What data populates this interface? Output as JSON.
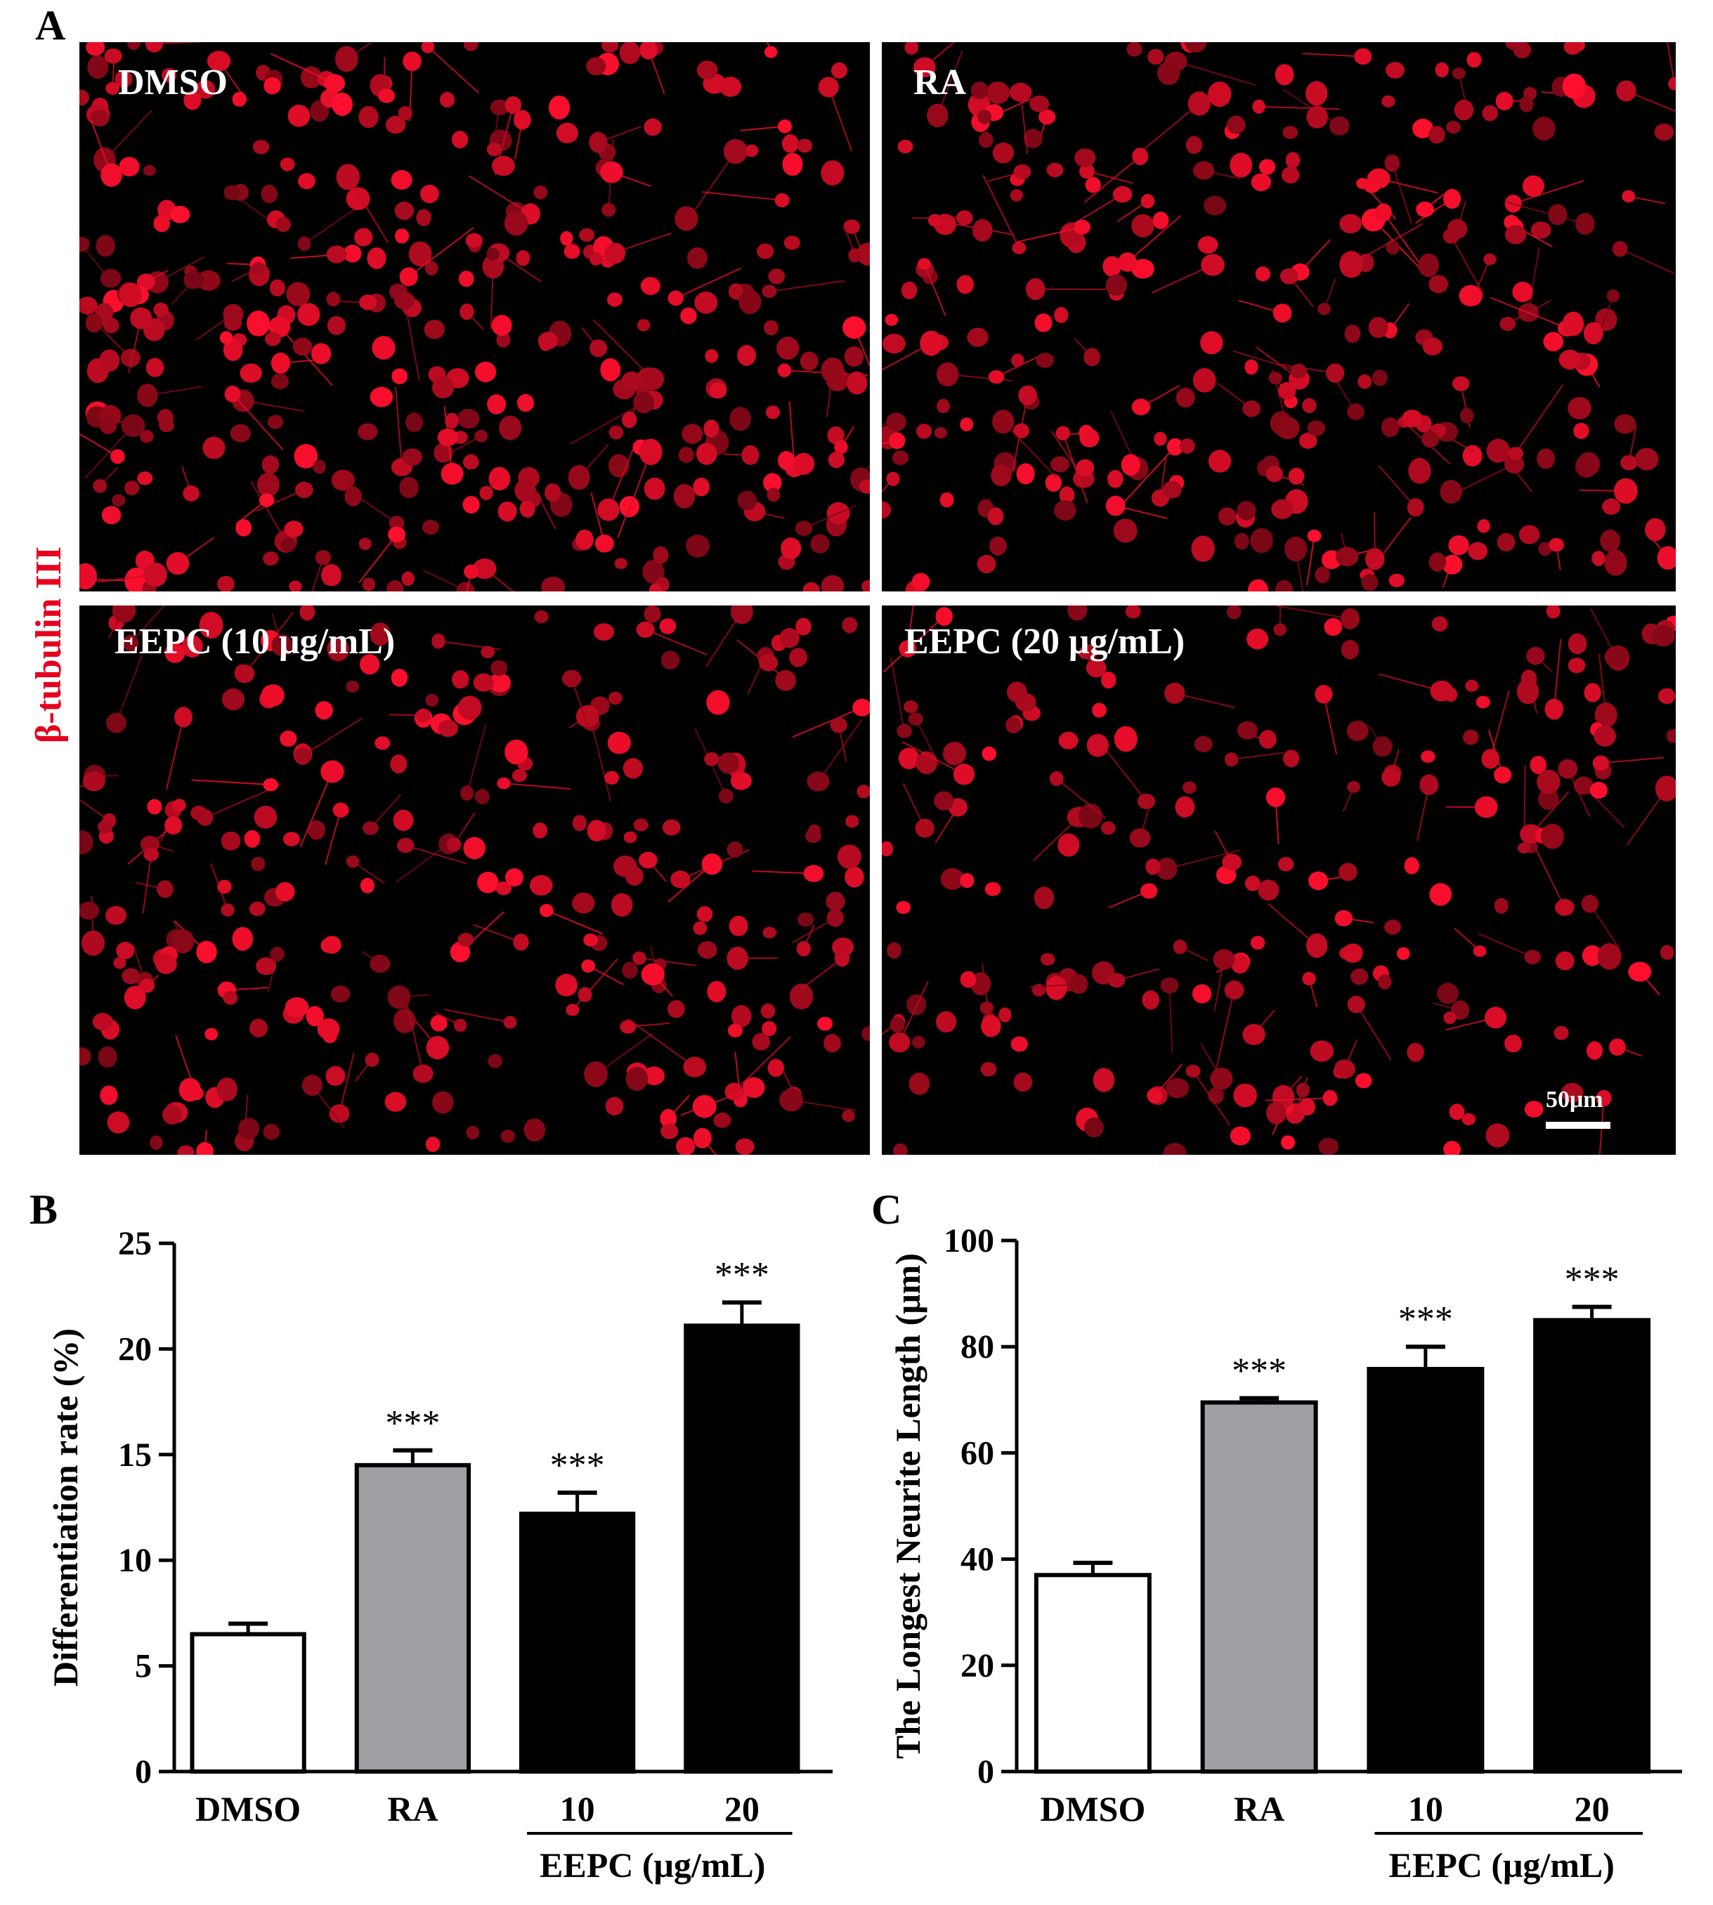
{
  "panel_letters": {
    "a": "A",
    "b": "B",
    "c": "C"
  },
  "stain_label": "β-tubulin III",
  "stain_color": "#e6001e",
  "micrographs": [
    {
      "label": "DMSO"
    },
    {
      "label": "RA"
    },
    {
      "label": "EEPC (10 μg/mL)"
    },
    {
      "label": "EEPC (20 μg/mL)"
    }
  ],
  "scale_bar_label": "50μm",
  "chart_data": [
    {
      "type": "bar",
      "panel": "B",
      "categories": [
        "DMSO",
        "RA",
        "10",
        "20"
      ],
      "group_label": "EEPC (μg/mL)",
      "ylabel": "Differentiation rate (%)",
      "xlabel": "",
      "ylim": [
        0,
        25
      ],
      "yticks": [
        0,
        5,
        10,
        15,
        20,
        25
      ],
      "values": [
        6.5,
        14.5,
        12.2,
        21.1
      ],
      "errors": [
        0.5,
        0.7,
        1.0,
        1.1
      ],
      "fills": [
        "#ffffff",
        "#a0a0a4",
        "#000000",
        "#000000"
      ],
      "significance": [
        "",
        "***",
        "***",
        "***"
      ],
      "grid": false
    },
    {
      "type": "bar",
      "panel": "C",
      "categories": [
        "DMSO",
        "RA",
        "10",
        "20"
      ],
      "group_label": "EEPC (μg/mL)",
      "ylabel": "The Longest Neurite Length (μm)",
      "xlabel": "",
      "ylim": [
        0,
        100
      ],
      "yticks": [
        0,
        20,
        40,
        60,
        80,
        100
      ],
      "values": [
        37.0,
        69.5,
        75.8,
        85.0
      ],
      "errors": [
        2.3,
        0.8,
        4.2,
        2.5
      ],
      "fills": [
        "#ffffff",
        "#a0a0a4",
        "#000000",
        "#000000"
      ],
      "significance": [
        "",
        "***",
        "***",
        "***"
      ],
      "grid": false
    }
  ]
}
